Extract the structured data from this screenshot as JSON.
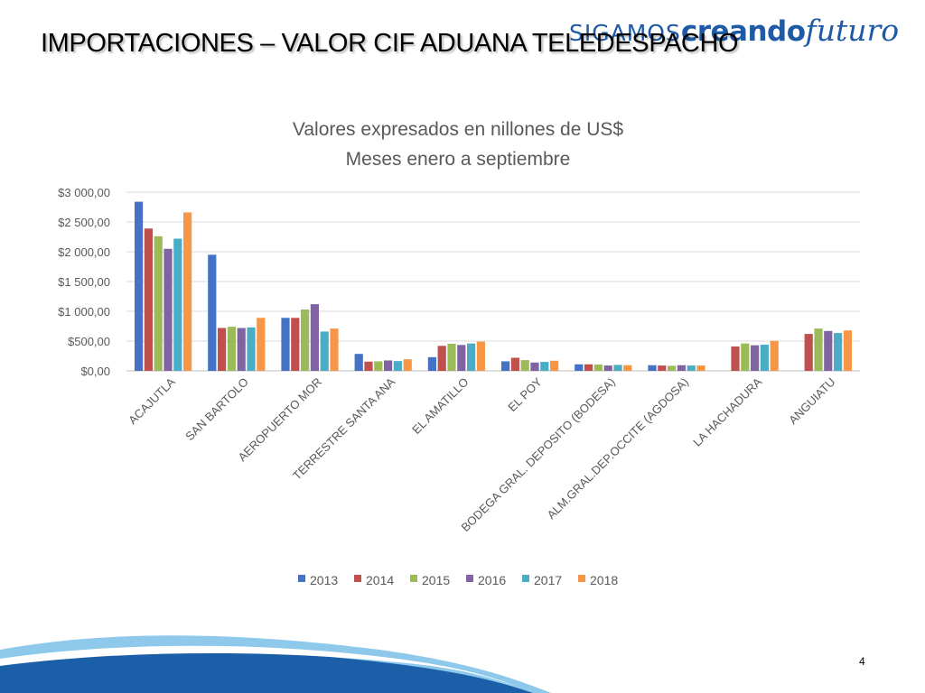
{
  "slide": {
    "title": "IMPORTACIONES – VALOR CIF ADUANA TELEDESPACHO",
    "page_number": "4"
  },
  "logo": {
    "part1": "SIGAMOS",
    "part2": "creando",
    "part3": "futuro"
  },
  "colors": {
    "logo": "#1f5aa6",
    "footer_light": "#8ec9ec",
    "footer_dark": "#1b5fa8"
  },
  "chart_data": {
    "type": "bar",
    "title": [
      "Valores expresados en nillones de US$",
      "Meses enero a septiembre"
    ],
    "categories": [
      "ACAJUTLA",
      "SAN BARTOLO",
      "AEROPUERTO MOR",
      "TERRESTRE SANTA ANA",
      "EL AMATILLO",
      "EL POY",
      "BODEGA GRAL. DEPOSITO (BODESA)",
      "ALM.GRAL.DEP.OCCITE (AGDOSA)",
      "LA HACHADURA",
      "ANGUIATU"
    ],
    "series": [
      {
        "name": "2013",
        "color": "#4472c4",
        "values": [
          2840,
          1950,
          890,
          285,
          230,
          160,
          110,
          95,
          null,
          null
        ]
      },
      {
        "name": "2014",
        "color": "#c0504d",
        "values": [
          2390,
          720,
          890,
          155,
          420,
          220,
          110,
          90,
          410,
          620
        ]
      },
      {
        "name": "2015",
        "color": "#9bbb59",
        "values": [
          2260,
          740,
          1030,
          160,
          455,
          180,
          105,
          85,
          460,
          710
        ]
      },
      {
        "name": "2016",
        "color": "#8064a2",
        "values": [
          2050,
          720,
          1120,
          175,
          435,
          140,
          90,
          95,
          430,
          670
        ]
      },
      {
        "name": "2017",
        "color": "#4bacc6",
        "values": [
          2220,
          730,
          660,
          165,
          460,
          150,
          100,
          90,
          440,
          635
        ]
      },
      {
        "name": "2018",
        "color": "#f79646",
        "values": [
          2660,
          890,
          710,
          195,
          490,
          170,
          95,
          90,
          505,
          680
        ]
      }
    ],
    "y_ticks": [
      "$0,00",
      "$500,00",
      "$1 000,00",
      "$1 500,00",
      "$2 000,00",
      "$2 500,00",
      "$3 000,00"
    ],
    "ylim": [
      0,
      3000
    ],
    "y_step": 500,
    "grid": true,
    "legend_position": "bottom"
  }
}
